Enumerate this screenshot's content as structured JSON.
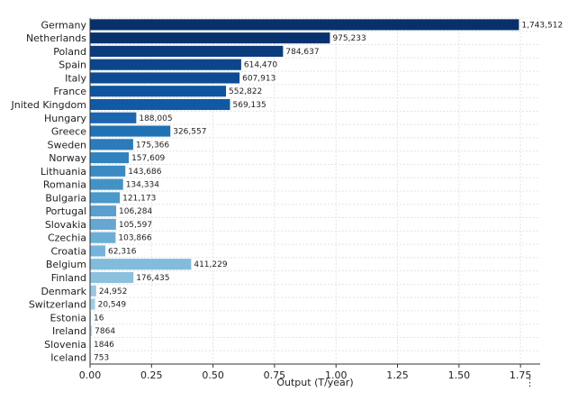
{
  "chart_data": {
    "type": "bar",
    "orientation": "horizontal",
    "categories": [
      "Germany",
      "Netherlands",
      "Poland",
      "Spain",
      "Italy",
      "France",
      "Jnited Kingdom",
      "Hungary",
      "Greece",
      "Sweden",
      "Norway",
      "Lithuania",
      "Romania",
      "Bulgaria",
      "Portugal",
      "Slovakia",
      "Czechia",
      "Croatia",
      "Belgium",
      "Finland",
      "Denmark",
      "Switzerland",
      "Estonia",
      "Ireland",
      "Slovenia",
      "Iceland"
    ],
    "values": [
      1743512,
      975233,
      784637,
      614470,
      607913,
      552822,
      569135,
      188005,
      326557,
      175366,
      157609,
      143686,
      134334,
      121173,
      106284,
      105597,
      103866,
      62316,
      411229,
      176435,
      24952,
      20549,
      16,
      7864,
      1846,
      753
    ],
    "value_labels": [
      "1,743,512",
      "975,233",
      "784,637",
      "614,470",
      "607,913",
      "552,822",
      "569,135",
      "188,005",
      "326,557",
      "175,366",
      "157,609",
      "143,686",
      "134,334",
      "121,173",
      "106,284",
      "105,597",
      "103,866",
      "62,316",
      "411,229",
      "176,435",
      "24,952",
      "20,549",
      "16",
      "7864",
      "1846",
      "753"
    ],
    "colors": [
      "#08306b",
      "#08326e",
      "#0a3b7d",
      "#0c458b",
      "#0d4b93",
      "#0f549e",
      "#1159a4",
      "#1c66b1",
      "#2171b5",
      "#2b7bbc",
      "#3183be",
      "#3a8bc2",
      "#4292c6",
      "#4b98ca",
      "#5a9fcd",
      "#66a7d2",
      "#6baed6",
      "#75b4d9",
      "#82bbdb",
      "#8cc1de",
      "#97c7e1",
      "#a2cde4",
      "#acd3e7",
      "#b3d8ea",
      "#bcdcec",
      "#c6dbef"
    ],
    "xlabel": "Output (T/year)",
    "xticks": [
      "0.00",
      "0.25",
      "0.50",
      "0.75",
      "1.00",
      "1.25",
      "1.50",
      "1.75"
    ],
    "xtick_values": [
      0,
      0.25,
      0.5,
      0.75,
      1.0,
      1.25,
      1.5,
      1.75
    ],
    "xlim": [
      0,
      1.83
    ],
    "x_scale_factor": 1000000,
    "grid": true,
    "corner_mark": "⋮"
  }
}
